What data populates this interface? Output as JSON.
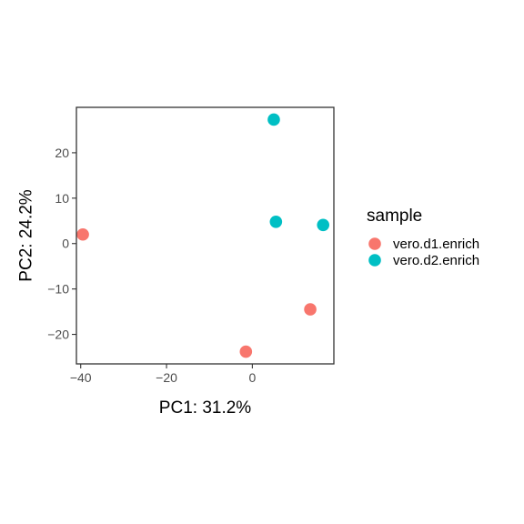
{
  "chart_data": {
    "type": "scatter",
    "title": "",
    "xlabel": "PC1: 31.2%",
    "ylabel": "PC2: 24.2%",
    "xlim": [
      -41,
      19
    ],
    "ylim": [
      -26.5,
      30
    ],
    "xticks": [
      -40,
      -20,
      0
    ],
    "yticks": [
      -20,
      -10,
      0,
      10,
      20
    ],
    "xtick_labels": [
      "−40",
      "−20",
      "0"
    ],
    "ytick_labels": [
      "−20",
      "−10",
      "0",
      "10",
      "20"
    ],
    "grid": false,
    "legend": {
      "title": "sample",
      "position": "right"
    },
    "series": [
      {
        "name": "vero.d1.enrich",
        "color": "#F8766D",
        "points": [
          {
            "x": -39.5,
            "y": 2.0
          },
          {
            "x": 13.5,
            "y": -14.5
          },
          {
            "x": -1.5,
            "y": -23.8
          }
        ]
      },
      {
        "name": "vero.d2.enrich",
        "color": "#00BFC4",
        "points": [
          {
            "x": 5.0,
            "y": 27.3
          },
          {
            "x": 5.5,
            "y": 4.8
          },
          {
            "x": 16.5,
            "y": 4.1
          }
        ]
      }
    ]
  }
}
